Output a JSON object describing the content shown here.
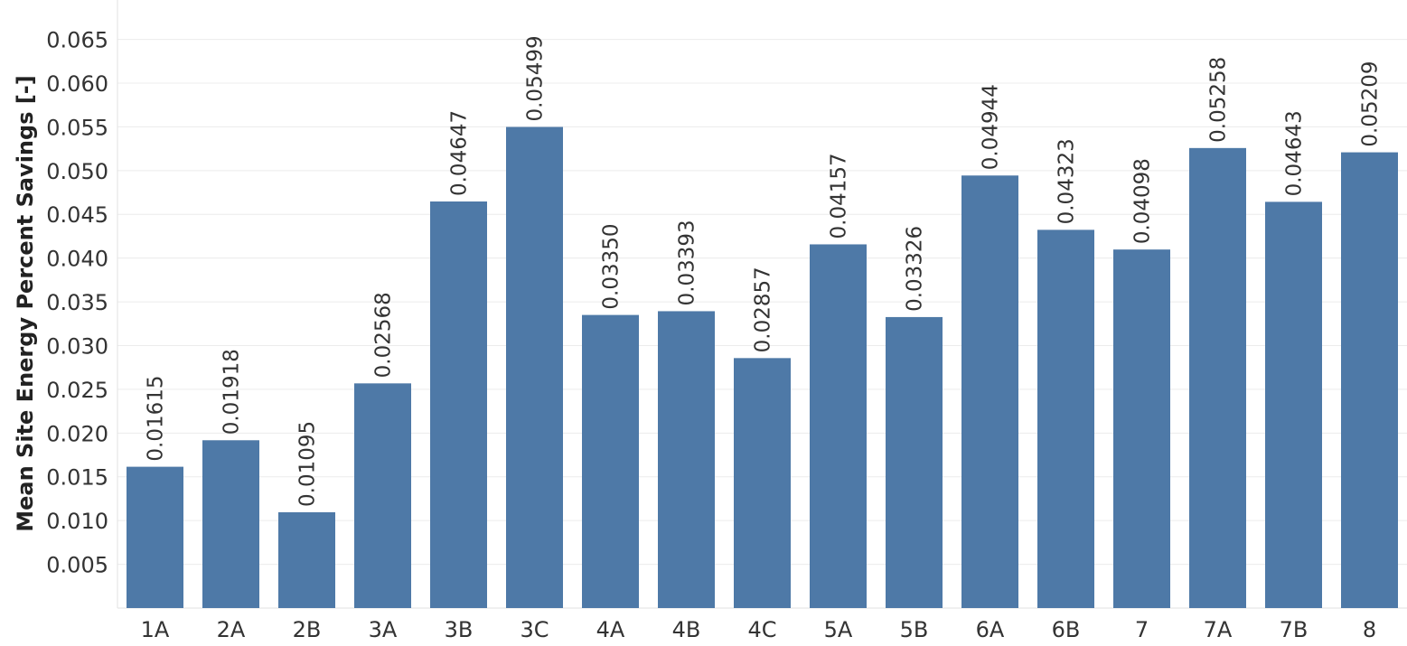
{
  "chart_data": {
    "type": "bar",
    "title": "",
    "xlabel": "",
    "ylabel": "Mean Site Energy Percent Savings [-]",
    "categories": [
      "1A",
      "2A",
      "2B",
      "3A",
      "3B",
      "3C",
      "4A",
      "4B",
      "4C",
      "5A",
      "5B",
      "6A",
      "6B",
      "7",
      "7A",
      "7B",
      "8"
    ],
    "values": [
      0.01615,
      0.01918,
      0.01095,
      0.02568,
      0.04647,
      0.05499,
      0.0335,
      0.03393,
      0.02857,
      0.04157,
      0.03326,
      0.04944,
      0.04323,
      0.04098,
      0.05258,
      0.04643,
      0.05209
    ],
    "data_labels": [
      "0.01615",
      "0.01918",
      "0.01095",
      "0.02568",
      "0.04647",
      "0.05499",
      "0.03350",
      "0.03393",
      "0.02857",
      "0.04157",
      "0.03326",
      "0.04944",
      "0.04323",
      "0.04098",
      "0.05258",
      "0.04643",
      "0.05209"
    ],
    "ylim": [
      0,
      0.0695
    ],
    "yticks": [
      "0.005",
      "0.010",
      "0.015",
      "0.020",
      "0.025",
      "0.030",
      "0.035",
      "0.040",
      "0.045",
      "0.050",
      "0.055",
      "0.060",
      "0.065"
    ],
    "grid": true,
    "legend": "none",
    "bar_color": "#4e79a7"
  }
}
